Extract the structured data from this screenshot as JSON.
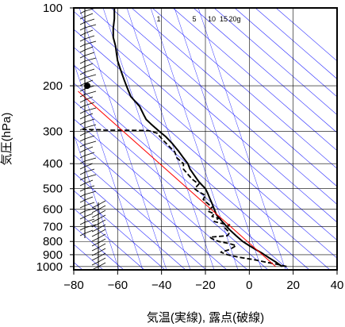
{
  "chart_data": {
    "type": "line",
    "xlabel": "気温(実線), 露点(破線)",
    "ylabel": "気圧(hPa)",
    "xlim": [
      -80,
      40
    ],
    "ylim": [
      1030,
      100
    ],
    "yscale": "log",
    "x_ticks": [
      -80,
      -60,
      -40,
      -20,
      0,
      20,
      40
    ],
    "x_tick_labels": [
      "−80",
      "−60",
      "−40",
      "−20",
      "0",
      "20",
      "40"
    ],
    "y_ticks": [
      100,
      200,
      300,
      400,
      500,
      600,
      700,
      800,
      900,
      1000
    ],
    "y_tick_labels": [
      "100",
      "200",
      "300",
      "400",
      "500",
      "600",
      "700",
      "800",
      "900",
      "1000"
    ],
    "grid": true,
    "mixing_ratio_labels": [
      "1",
      "5",
      "10",
      "15",
      "20g"
    ],
    "colors": {
      "temperature": "#000000",
      "dewpoint": "#000000",
      "reference_line": "#ff0000",
      "adiabats": "#2a2aff",
      "grid": "#000000"
    },
    "series": [
      {
        "role": "temperature",
        "style": "solid",
        "points": [
          [
            15,
            1000
          ],
          [
            12,
            960
          ],
          [
            9,
            925
          ],
          [
            6,
            890
          ],
          [
            3,
            860
          ],
          [
            0,
            830
          ],
          [
            -3,
            800
          ],
          [
            -6,
            760
          ],
          [
            -9,
            720
          ],
          [
            -11,
            690
          ],
          [
            -13,
            660
          ],
          [
            -15,
            630
          ],
          [
            -16,
            600
          ],
          [
            -17,
            570
          ],
          [
            -18,
            545
          ],
          [
            -19,
            520
          ],
          [
            -20,
            500
          ],
          [
            -23,
            470
          ],
          [
            -25,
            445
          ],
          [
            -27,
            420
          ],
          [
            -28,
            400
          ],
          [
            -30,
            380
          ],
          [
            -32,
            360
          ],
          [
            -35,
            335
          ],
          [
            -38,
            315
          ],
          [
            -41,
            300
          ],
          [
            -43,
            290
          ],
          [
            -45,
            280
          ],
          [
            -47,
            270
          ],
          [
            -48,
            260
          ],
          [
            -49,
            250
          ],
          [
            -50,
            240
          ],
          [
            -52,
            230
          ],
          [
            -54,
            220
          ],
          [
            -55,
            210
          ],
          [
            -56,
            200
          ],
          [
            -57,
            190
          ],
          [
            -58,
            180
          ],
          [
            -59,
            170
          ],
          [
            -60,
            160
          ],
          [
            -60.5,
            150
          ],
          [
            -61,
            140
          ],
          [
            -62,
            130
          ],
          [
            -62,
            120
          ],
          [
            -61.5,
            110
          ],
          [
            -61.5,
            100
          ]
        ]
      },
      {
        "role": "dewpoint",
        "style": "dashed",
        "points": [
          [
            17,
            1000
          ],
          [
            14,
            985
          ],
          [
            7,
            960
          ],
          [
            2,
            940
          ],
          [
            -5,
            920
          ],
          [
            -10,
            900
          ],
          [
            -13,
            880
          ],
          [
            -9,
            860
          ],
          [
            -6,
            830
          ],
          [
            -9,
            815
          ],
          [
            -14,
            800
          ],
          [
            -17,
            780
          ],
          [
            -18,
            770
          ],
          [
            -10,
            760
          ],
          [
            -9,
            740
          ],
          [
            -11,
            710
          ],
          [
            -9,
            690
          ],
          [
            -13,
            680
          ],
          [
            -16,
            670
          ],
          [
            -14,
            650
          ],
          [
            -17,
            640
          ],
          [
            -16,
            625
          ],
          [
            -19,
            610
          ],
          [
            -17,
            590
          ],
          [
            -19,
            570
          ],
          [
            -21,
            550
          ],
          [
            -20,
            530
          ],
          [
            -23,
            515
          ],
          [
            -25,
            500
          ],
          [
            -23,
            480
          ],
          [
            -26,
            460
          ],
          [
            -28,
            440
          ],
          [
            -30,
            420
          ],
          [
            -30,
            400
          ],
          [
            -33,
            380
          ],
          [
            -34,
            360
          ],
          [
            -37,
            340
          ],
          [
            -40,
            320
          ],
          [
            -42,
            305
          ],
          [
            -46,
            298
          ],
          [
            -58,
            297
          ],
          [
            -66,
            297
          ],
          [
            -67,
            296
          ],
          [
            -76,
            295
          ]
        ]
      },
      {
        "role": "reference_line",
        "style": "solid",
        "points": [
          [
            -78,
            210
          ],
          [
            12,
            1000
          ]
        ]
      }
    ]
  }
}
